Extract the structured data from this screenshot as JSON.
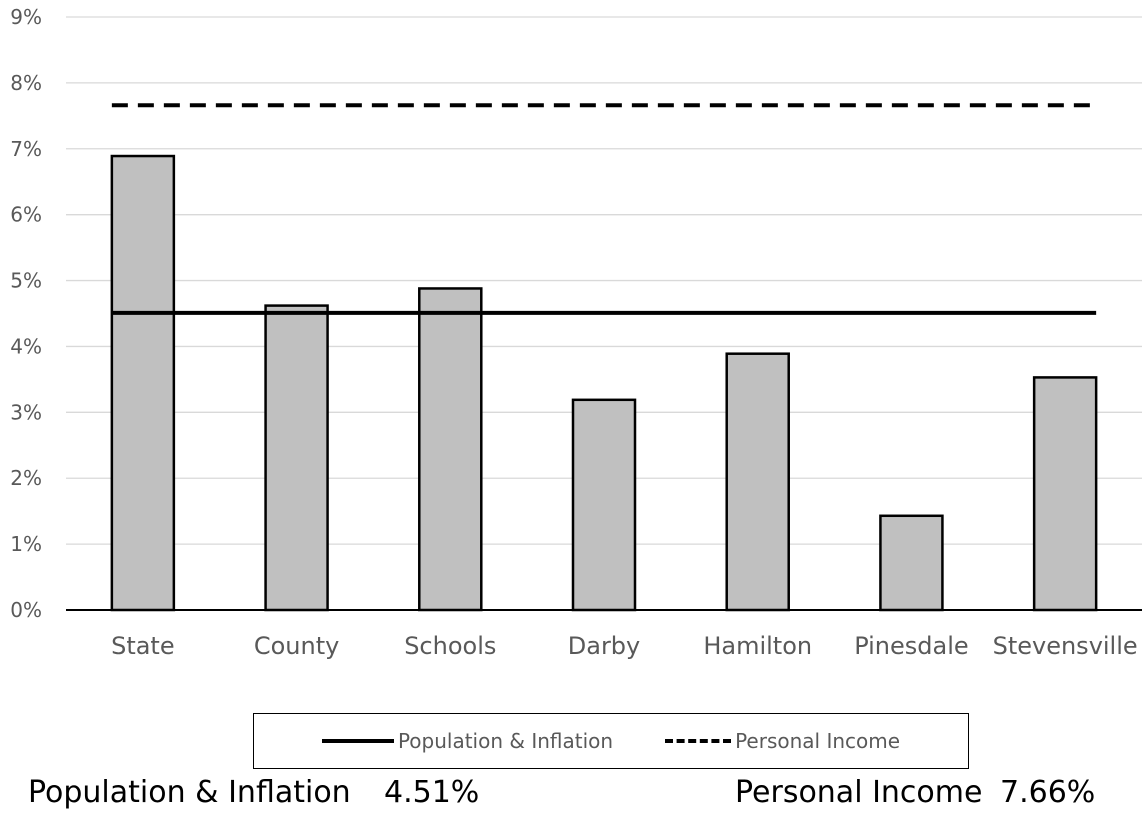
{
  "chart_data": {
    "type": "bar",
    "categories": [
      "State",
      "County",
      "Schools",
      "Darby",
      "Hamilton",
      "Pinesdale",
      "Stevensville"
    ],
    "values": [
      6.89,
      4.62,
      4.88,
      3.19,
      3.89,
      1.43,
      3.53
    ],
    "y_ticks": [
      "0%",
      "1%",
      "2%",
      "3%",
      "4%",
      "5%",
      "6%",
      "7%",
      "8%",
      "9%"
    ],
    "ylim": [
      0,
      9
    ],
    "grid": true,
    "bar_color": "#c0c0c0",
    "bar_edge_color": "#000000",
    "reference_lines": [
      {
        "name": "Population & Inflation",
        "value": 4.51,
        "style": "solid",
        "color": "#000000"
      },
      {
        "name": "Personal Income",
        "value": 7.66,
        "style": "dashed",
        "color": "#000000"
      }
    ],
    "legend": [
      "Population & Inflation",
      "Personal Income"
    ],
    "legend_position": "bottom"
  },
  "summary": {
    "pop_label": "Population & Inflation",
    "pop_value": "4.51%",
    "income_label": "Personal Income",
    "income_value": "7.66%"
  }
}
